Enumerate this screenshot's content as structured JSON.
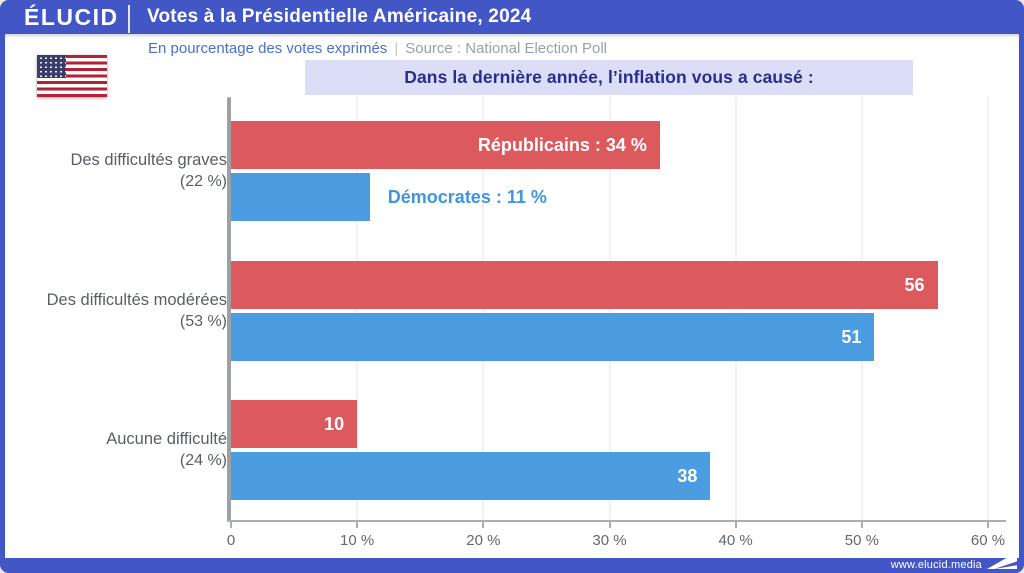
{
  "header": {
    "logo": "ÉLUCID",
    "title": "Votes à la Présidentielle Américaine, 2024"
  },
  "subtitle": {
    "left": "En pourcentage des votes exprimés",
    "separator": "|",
    "source": "Source : National Election Poll"
  },
  "question": "Dans la dernière année, l’inflation vous a causé :",
  "footer": {
    "url": "www.elucid.media"
  },
  "colors": {
    "frame_blue": "#4256c5",
    "republicains_red": "#dc595d",
    "democrates_blue": "#4c9ce2",
    "democrates_label_blue": "#3e96dd",
    "question_bg": "#dcddf6",
    "question_text": "#292d8f",
    "subtitle_blue": "#4a6fd2",
    "source_gray": "#9aa0a8"
  },
  "icons": {
    "flag": "us-flag-icon",
    "footer_logo": "elucid-arrow-icon"
  },
  "chart_data": {
    "type": "bar",
    "orientation": "horizontal",
    "title": "Dans la dernière année, l’inflation vous a causé :",
    "xlabel": "",
    "ylabel": "",
    "xlim": [
      0,
      60
    ],
    "x_tick_values": [
      0,
      10,
      20,
      30,
      40,
      50,
      60
    ],
    "x_tick_labels": [
      "0",
      "10 %",
      "20 %",
      "30 %",
      "40 %",
      "50 %",
      "60 %"
    ],
    "grid": true,
    "legend_position": "in-bar-labels",
    "categories": [
      "Des difficultés graves",
      "Des difficultés modérées",
      "Aucune difficulté"
    ],
    "category_shares": [
      "(22 %)",
      "(53 %)",
      "(24 %)"
    ],
    "series": [
      {
        "name": "Républicains",
        "color": "#dc595d",
        "values": [
          34,
          56,
          10
        ]
      },
      {
        "name": "Démocrates",
        "color": "#4c9ce2",
        "values": [
          11,
          51,
          38
        ]
      }
    ],
    "groups": [
      {
        "category": "Des difficultés graves",
        "share": "(22 %)",
        "bars": [
          {
            "series": "republicains",
            "value": 34,
            "label": "Républicains : 34 %",
            "label_position": "inside"
          },
          {
            "series": "democrates",
            "value": 11,
            "label": "Démocrates : 11 %",
            "label_position": "outside"
          }
        ]
      },
      {
        "category": "Des difficultés modérées",
        "share": "(53 %)",
        "bars": [
          {
            "series": "republicains",
            "value": 56,
            "label": "56",
            "label_position": "inside"
          },
          {
            "series": "democrates",
            "value": 51,
            "label": "51",
            "label_position": "inside"
          }
        ]
      },
      {
        "category": "Aucune difficulté",
        "share": "(24 %)",
        "bars": [
          {
            "series": "republicains",
            "value": 10,
            "label": "10",
            "label_position": "inside"
          },
          {
            "series": "democrates",
            "value": 38,
            "label": "38",
            "label_position": "inside"
          }
        ]
      }
    ]
  }
}
